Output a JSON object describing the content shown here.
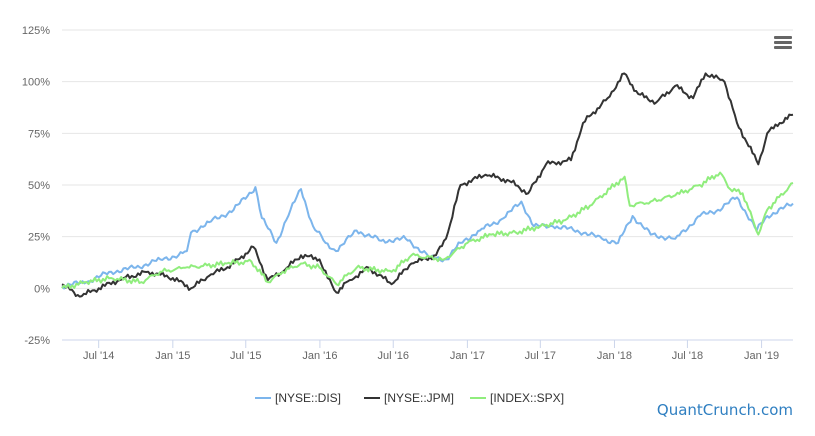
{
  "brand": "QuantCrunch.com",
  "menu_icon": "hamburger-menu-icon",
  "chart_data": {
    "type": "line",
    "title": "",
    "xlabel": "",
    "ylabel": "",
    "ylim": [
      -25,
      125
    ],
    "yticks": [
      -25,
      0,
      25,
      50,
      75,
      100,
      125
    ],
    "ytick_labels": [
      "-25%",
      "0%",
      "25%",
      "50%",
      "75%",
      "100%",
      "125%"
    ],
    "xlim": [
      "2014-04-01",
      "2019-03-20"
    ],
    "xticks": [
      "2014-07-01",
      "2015-01-01",
      "2015-07-01",
      "2016-01-01",
      "2016-07-01",
      "2017-01-01",
      "2017-07-01",
      "2018-01-01",
      "2018-07-01",
      "2019-01-01"
    ],
    "xtick_labels": [
      "Jul '14",
      "Jan '15",
      "Jul '15",
      "Jan '16",
      "Jul '16",
      "Jan '17",
      "Jul '17",
      "Jan '18",
      "Jul '18",
      "Jan '19"
    ],
    "grid": true,
    "legend": "bottom-center",
    "series": [
      {
        "name": "[NYSE::DIS]",
        "color": "#7cb5ec",
        "x": [
          "2014-04-01",
          "2014-06-01",
          "2014-08-01",
          "2014-10-01",
          "2014-12-01",
          "2015-01-15",
          "2015-02-05",
          "2015-02-15",
          "2015-04-01",
          "2015-06-01",
          "2015-07-25",
          "2015-08-10",
          "2015-09-15",
          "2015-10-20",
          "2015-11-15",
          "2015-12-15",
          "2016-01-15",
          "2016-02-10",
          "2016-04-01",
          "2016-06-01",
          "2016-08-01",
          "2016-10-01",
          "2016-11-10",
          "2016-12-15",
          "2017-02-01",
          "2017-04-01",
          "2017-05-15",
          "2017-06-15",
          "2017-08-01",
          "2017-10-01",
          "2017-12-01",
          "2018-01-10",
          "2018-02-15",
          "2018-04-01",
          "2018-06-01",
          "2018-08-01",
          "2018-09-15",
          "2018-11-01",
          "2018-12-20",
          "2019-01-15",
          "2019-03-20"
        ],
        "values": [
          1,
          3,
          8,
          10,
          14,
          16,
          18,
          27,
          32,
          38,
          49,
          34,
          22,
          38,
          48,
          30,
          22,
          18,
          28,
          23,
          24,
          15,
          14,
          22,
          28,
          34,
          42,
          30,
          30,
          28,
          24,
          22,
          35,
          26,
          24,
          35,
          38,
          44,
          28,
          35,
          41
        ]
      },
      {
        "name": "[NYSE::JPM]",
        "color": "#333333",
        "x": [
          "2014-04-01",
          "2014-05-15",
          "2014-07-01",
          "2014-09-01",
          "2014-11-01",
          "2015-01-01",
          "2015-02-15",
          "2015-04-01",
          "2015-06-01",
          "2015-07-20",
          "2015-08-25",
          "2015-10-01",
          "2015-11-15",
          "2015-12-31",
          "2016-01-20",
          "2016-02-11",
          "2016-03-15",
          "2016-05-01",
          "2016-06-27",
          "2016-08-15",
          "2016-10-15",
          "2016-11-09",
          "2016-12-15",
          "2017-02-15",
          "2017-04-15",
          "2017-06-01",
          "2017-07-15",
          "2017-09-15",
          "2017-10-15",
          "2017-12-15",
          "2018-01-25",
          "2018-03-01",
          "2018-04-15",
          "2018-06-01",
          "2018-07-15",
          "2018-08-15",
          "2018-10-01",
          "2018-11-01",
          "2018-12-24",
          "2019-01-15",
          "2019-02-15",
          "2019-03-20"
        ],
        "values": [
          2,
          -4,
          0,
          5,
          8,
          5,
          0,
          6,
          12,
          20,
          4,
          8,
          16,
          14,
          5,
          -2,
          4,
          10,
          2,
          12,
          16,
          24,
          50,
          55,
          52,
          46,
          60,
          62,
          80,
          92,
          104,
          94,
          90,
          98,
          92,
          104,
          100,
          80,
          60,
          75,
          80,
          84
        ]
      },
      {
        "name": "[INDEX::SPX]",
        "color": "#90ed7d",
        "x": [
          "2014-04-01",
          "2014-06-01",
          "2014-08-01",
          "2014-10-15",
          "2014-12-01",
          "2015-02-01",
          "2015-05-15",
          "2015-07-15",
          "2015-08-25",
          "2015-10-01",
          "2015-11-15",
          "2015-12-31",
          "2016-02-11",
          "2016-04-01",
          "2016-06-27",
          "2016-08-15",
          "2016-11-04",
          "2017-01-01",
          "2017-03-01",
          "2017-05-01",
          "2017-07-01",
          "2017-09-01",
          "2017-11-01",
          "2018-01-26",
          "2018-02-08",
          "2018-04-01",
          "2018-06-01",
          "2018-08-01",
          "2018-09-20",
          "2018-10-15",
          "2018-11-15",
          "2018-12-24",
          "2019-01-15",
          "2019-03-20"
        ],
        "values": [
          0,
          3,
          5,
          3,
          8,
          10,
          12,
          13,
          3,
          8,
          12,
          10,
          2,
          10,
          8,
          16,
          14,
          22,
          26,
          27,
          30,
          33,
          40,
          54,
          40,
          42,
          45,
          50,
          56,
          48,
          46,
          26,
          38,
          51
        ]
      }
    ]
  }
}
